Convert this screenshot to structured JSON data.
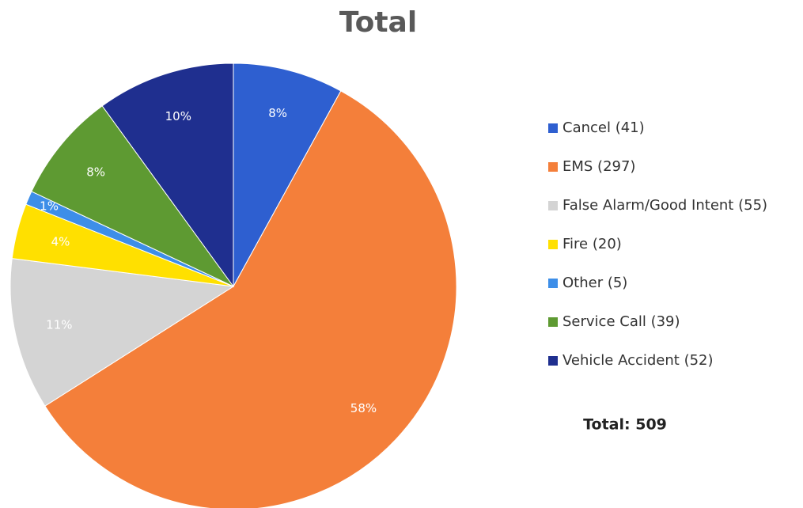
{
  "chart_data": {
    "type": "pie",
    "title": "Total",
    "categories": [
      "Cancel (41)",
      "EMS (297)",
      "False Alarm/Good Intent (55)",
      "Fire (20)",
      "Other (5)",
      "Service Call (39)",
      "Vehicle Accident (52)"
    ],
    "values": [
      8,
      58,
      11,
      4,
      1,
      8,
      10
    ],
    "value_labels": [
      "8%",
      "58%",
      "11%",
      "4%",
      "1%",
      "8%",
      "10%"
    ],
    "colors": [
      "#2e5fd0",
      "#f47f3a",
      "#d4d4d4",
      "#ffe000",
      "#3d8ee8",
      "#5e9a32",
      "#1f2f8f"
    ],
    "legend": "right",
    "annotation": "Total: 509"
  }
}
